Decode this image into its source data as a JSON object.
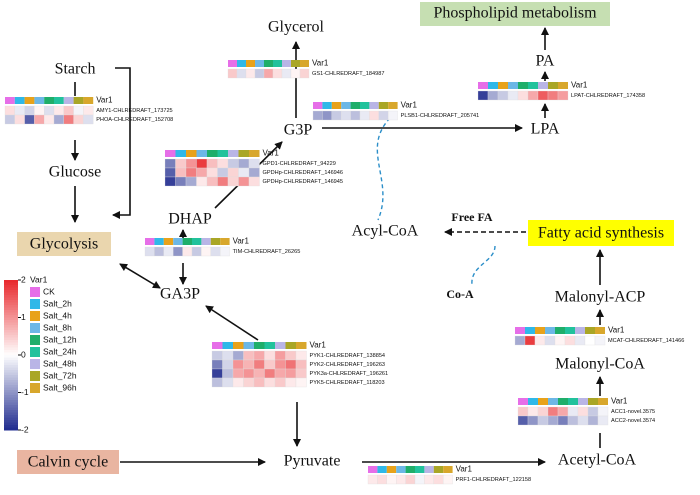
{
  "nodes": {
    "glycerol": "Glycerol",
    "phospholipid": "Phospholipid metabolism",
    "pa": "PA",
    "lpa": "LPA",
    "starch": "Starch",
    "glucose": "Glucose",
    "glycolysis": "Glycolysis",
    "g3p": "G3P",
    "dhap": "DHAP",
    "ga3p": "GA3P",
    "acylcoa": "Acyl-CoA",
    "freefa": "Free FA",
    "coa": "Co-A",
    "fas": "Fatty acid synthesis",
    "malonylacp": "Malonyl-ACP",
    "malonylcoa": "Malonyl-CoA",
    "acetylcoa": "Acetyl-CoA",
    "calvin": "Calvin cycle",
    "pyruvate": "Pyruvate"
  },
  "legend": {
    "title": "Var1",
    "conditions": [
      {
        "name": "CK",
        "color": "#e66ee8"
      },
      {
        "name": "Salt_2h",
        "color": "#2fb8e8"
      },
      {
        "name": "Salt_4h",
        "color": "#e8a21a"
      },
      {
        "name": "Salt_8h",
        "color": "#6cb7e6"
      },
      {
        "name": "Salt_12h",
        "color": "#1fae6a"
      },
      {
        "name": "Salt_24h",
        "color": "#21c29c"
      },
      {
        "name": "Salt_48h",
        "color": "#b9b5e6"
      },
      {
        "name": "Salt_72h",
        "color": "#a9a626"
      },
      {
        "name": "Salt_96h",
        "color": "#d8a72c"
      }
    ],
    "colorbar": {
      "lim": [
        -2,
        2
      ],
      "ticks": [
        2,
        1,
        0,
        -1,
        -2
      ],
      "high": "#e8262a",
      "mid": "#ffffff",
      "low": "#1e2a8e"
    }
  },
  "heatmaps": [
    {
      "genes": [
        "GS1-CHLREDRAFT_184987"
      ],
      "values": [
        [
          0.5,
          -0.3,
          0.2,
          -0.5,
          0.8,
          0.3,
          -0.2,
          0.1,
          0.4
        ]
      ]
    },
    {
      "genes": [
        "AMY1-CHLREDRAFT_173725",
        "PHOA-CHLREDRAFT_152708"
      ],
      "values": [
        [
          0.3,
          -0.2,
          -0.4,
          0.1,
          -0.3,
          0.2,
          0.5,
          -0.1,
          0.2
        ],
        [
          -0.5,
          0.3,
          -1.5,
          0.8,
          0.2,
          -0.8,
          1.2,
          0.4,
          -0.3
        ]
      ]
    },
    {
      "genes": [
        "PLSB1-CHLREDRAFT_205741"
      ],
      "values": [
        [
          -0.8,
          -1.0,
          -0.5,
          -0.3,
          -0.6,
          -0.2,
          0.3,
          -0.4,
          -0.1
        ]
      ]
    },
    {
      "genes": [
        "LPAT-CHLREDRAFT_174358"
      ],
      "values": [
        [
          -1.8,
          -0.8,
          -0.5,
          -0.2,
          0.3,
          0.8,
          1.5,
          1.2,
          0.9
        ]
      ]
    },
    {
      "genes": [
        "GPD1-CHLREDRAFT_94229",
        "GPDHp-CHLREDRAFT_146946",
        "GPDHp-CHLREDRAFT_146945"
      ],
      "values": [
        [
          -1.2,
          0.5,
          1.0,
          1.8,
          0.6,
          0.3,
          -0.5,
          -0.8,
          -0.3
        ],
        [
          -1.5,
          0.6,
          1.2,
          0.8,
          0.3,
          -0.5,
          0.4,
          -0.2,
          -0.8
        ],
        [
          -1.8,
          -1.2,
          -0.8,
          0.2,
          0.6,
          1.2,
          0.4,
          1.0,
          0.3
        ]
      ]
    },
    {
      "genes": [
        "TIM-CHLREDRAFT_26265"
      ],
      "values": [
        [
          -0.3,
          -0.6,
          -0.2,
          -1.0,
          0.2,
          -0.5,
          0.1,
          -0.3,
          -0.1
        ]
      ]
    },
    {
      "genes": [
        "PYK1-CHLREDRAFT_138854",
        "PYK2-CHLREDRAFT_196263",
        "PYK3a-CHLREDRAFT_196261",
        "PYK5-CHLREDRAFT_118203"
      ],
      "values": [
        [
          -0.5,
          -0.3,
          -0.8,
          0.6,
          0.8,
          0.3,
          0.9,
          0.5,
          0.2
        ],
        [
          -1.2,
          -0.4,
          1.0,
          0.7,
          1.2,
          0.5,
          1.0,
          1.3,
          0.6
        ],
        [
          -1.8,
          -0.6,
          0.8,
          1.0,
          0.7,
          1.2,
          0.8,
          0.9,
          0.5
        ],
        [
          -0.6,
          -0.3,
          0.2,
          0.4,
          0.6,
          0.3,
          0.5,
          0.2,
          0.1
        ]
      ]
    },
    {
      "genes": [
        "MCAT-CHLREDRAFT_141466"
      ],
      "values": [
        [
          -0.8,
          1.8,
          0.2,
          -0.3,
          0.1,
          0.3,
          -0.2,
          0.0,
          -0.1
        ]
      ]
    },
    {
      "genes": [
        "ACC1-novel.3575",
        "ACC2-novel.3574"
      ],
      "values": [
        [
          0.5,
          0.2,
          0.4,
          1.2,
          0.8,
          -0.2,
          0.3,
          -0.5,
          -0.1
        ],
        [
          -1.5,
          -1.0,
          -0.5,
          -0.8,
          -1.2,
          -0.6,
          -0.3,
          -0.7,
          -0.2
        ]
      ]
    },
    {
      "genes": [
        "PRF1-CHLREDRAFT_122158"
      ],
      "values": [
        [
          0.2,
          0.3,
          0.1,
          0.2,
          0.4,
          -0.1,
          0.2,
          0.3,
          0.1
        ]
      ]
    }
  ]
}
